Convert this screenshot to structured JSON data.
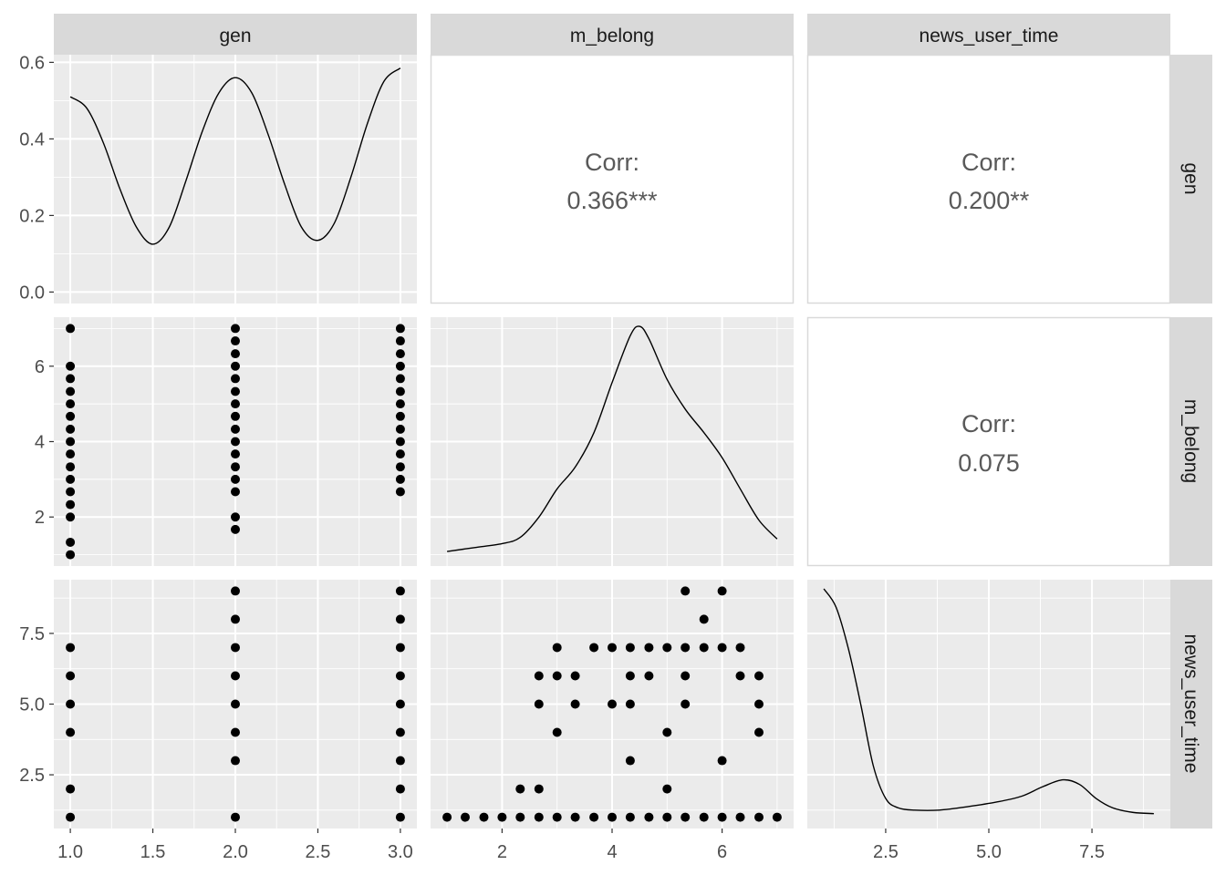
{
  "chart_data": {
    "type": "scatter",
    "subtype": "pairs-plot-matrix",
    "variables": [
      "gen",
      "m_belong",
      "news_user_time"
    ],
    "strip_labels": {
      "columns": [
        "gen",
        "m_belong",
        "news_user_time"
      ],
      "rows": [
        "gen",
        "m_belong",
        "news_user_time"
      ]
    },
    "colors": {
      "panel_bg": "#ebebeb",
      "grid": "#ffffff",
      "strip_bg": "#d9d9d9",
      "point": "#000000",
      "line": "#000000",
      "corr_text": "#595959",
      "tick_text": "#4d4d4d"
    },
    "axes": {
      "gen": {
        "range": [
          0.9,
          3.1
        ],
        "ticks": [
          1.0,
          1.5,
          2.0,
          2.5,
          3.0
        ],
        "tick_labels": [
          "1.0",
          "1.5",
          "2.0",
          "2.5",
          "3.0"
        ]
      },
      "m_belong": {
        "range": [
          0.7,
          7.3
        ],
        "ticks": [
          2,
          4,
          6
        ],
        "tick_labels": [
          "2",
          "4",
          "6"
        ]
      },
      "news_user_time": {
        "range": [
          0.6,
          9.4
        ],
        "ticks": [
          2.5,
          5.0,
          7.5
        ],
        "tick_labels": [
          "2.5",
          "5.0",
          "7.5"
        ]
      },
      "density_y": {
        "range": [
          -0.03,
          0.62
        ],
        "ticks": [
          0.0,
          0.2,
          0.4,
          0.6
        ],
        "tick_labels": [
          "0.0",
          "0.2",
          "0.4",
          "0.6"
        ]
      }
    },
    "correlations": [
      {
        "row": "gen",
        "col": "m_belong",
        "label": "Corr:",
        "value": "0.366***"
      },
      {
        "row": "gen",
        "col": "news_user_time",
        "label": "Corr:",
        "value": "0.200**"
      },
      {
        "row": "m_belong",
        "col": "news_user_time",
        "label": "Corr:",
        "value": "0.075"
      }
    ],
    "densities": {
      "gen": {
        "x": [
          1.0,
          1.1,
          1.2,
          1.3,
          1.4,
          1.5,
          1.6,
          1.7,
          1.8,
          1.9,
          2.0,
          2.1,
          2.2,
          2.3,
          2.4,
          2.5,
          2.6,
          2.7,
          2.8,
          2.9,
          3.0
        ],
        "y": [
          0.51,
          0.48,
          0.39,
          0.27,
          0.17,
          0.125,
          0.17,
          0.29,
          0.42,
          0.52,
          0.56,
          0.52,
          0.41,
          0.28,
          0.17,
          0.135,
          0.18,
          0.3,
          0.44,
          0.55,
          0.585
        ]
      },
      "m_belong": {
        "x": [
          1.0,
          1.5,
          2.0,
          2.33,
          2.67,
          3.0,
          3.33,
          3.67,
          4.0,
          4.33,
          4.5,
          4.67,
          5.0,
          5.33,
          5.67,
          6.0,
          6.33,
          6.67,
          7.0
        ],
        "y": [
          0.02,
          0.045,
          0.07,
          0.11,
          0.24,
          0.42,
          0.56,
          0.78,
          1.1,
          1.4,
          1.46,
          1.38,
          1.12,
          0.93,
          0.78,
          0.62,
          0.42,
          0.22,
          0.1
        ]
      },
      "news_user_time": {
        "x": [
          1.0,
          1.3,
          1.6,
          1.9,
          2.2,
          2.5,
          2.8,
          3.2,
          3.8,
          4.5,
          5.2,
          5.8,
          6.3,
          6.8,
          7.2,
          7.6,
          8.0,
          8.5,
          9.0
        ],
        "y": [
          0.98,
          0.9,
          0.72,
          0.48,
          0.22,
          0.08,
          0.04,
          0.03,
          0.03,
          0.045,
          0.065,
          0.09,
          0.13,
          0.16,
          0.14,
          0.08,
          0.04,
          0.02,
          0.015
        ]
      }
    },
    "scatter": {
      "gen_vs_m_belong": [
        [
          1,
          7
        ],
        [
          1,
          6
        ],
        [
          1,
          5.67
        ],
        [
          1,
          5.33
        ],
        [
          1,
          5
        ],
        [
          1,
          4.67
        ],
        [
          1,
          4.33
        ],
        [
          1,
          4
        ],
        [
          1,
          3.67
        ],
        [
          1,
          3.33
        ],
        [
          1,
          3
        ],
        [
          1,
          2.67
        ],
        [
          1,
          2.33
        ],
        [
          1,
          2
        ],
        [
          1,
          1.33
        ],
        [
          1,
          1
        ],
        [
          2,
          7
        ],
        [
          2,
          6.67
        ],
        [
          2,
          6.33
        ],
        [
          2,
          6
        ],
        [
          2,
          5.67
        ],
        [
          2,
          5.33
        ],
        [
          2,
          5
        ],
        [
          2,
          4.67
        ],
        [
          2,
          4.33
        ],
        [
          2,
          4
        ],
        [
          2,
          3.67
        ],
        [
          2,
          3.33
        ],
        [
          2,
          3
        ],
        [
          2,
          2.67
        ],
        [
          2,
          2
        ],
        [
          2,
          1.67
        ],
        [
          3,
          7
        ],
        [
          3,
          6.67
        ],
        [
          3,
          6.33
        ],
        [
          3,
          6
        ],
        [
          3,
          5.67
        ],
        [
          3,
          5.33
        ],
        [
          3,
          5
        ],
        [
          3,
          4.67
        ],
        [
          3,
          4.33
        ],
        [
          3,
          4
        ],
        [
          3,
          3.67
        ],
        [
          3,
          3.33
        ],
        [
          3,
          3
        ],
        [
          3,
          2.67
        ]
      ],
      "gen_vs_news_user_time": [
        [
          1,
          7
        ],
        [
          1,
          6
        ],
        [
          1,
          5
        ],
        [
          1,
          4
        ],
        [
          1,
          2
        ],
        [
          1,
          1
        ],
        [
          2,
          9
        ],
        [
          2,
          8
        ],
        [
          2,
          7
        ],
        [
          2,
          6
        ],
        [
          2,
          5
        ],
        [
          2,
          4
        ],
        [
          2,
          3
        ],
        [
          2,
          1
        ],
        [
          3,
          9
        ],
        [
          3,
          8
        ],
        [
          3,
          7
        ],
        [
          3,
          6
        ],
        [
          3,
          5
        ],
        [
          3,
          4
        ],
        [
          3,
          3
        ],
        [
          3,
          2
        ],
        [
          3,
          1
        ]
      ],
      "m_belong_vs_news_user_time": [
        [
          1,
          1
        ],
        [
          1.33,
          1
        ],
        [
          1.67,
          1
        ],
        [
          2,
          1
        ],
        [
          2.33,
          1
        ],
        [
          2.67,
          1
        ],
        [
          3,
          1
        ],
        [
          3.33,
          1
        ],
        [
          3.67,
          1
        ],
        [
          4,
          1
        ],
        [
          4.33,
          1
        ],
        [
          4.67,
          1
        ],
        [
          5,
          1
        ],
        [
          5.33,
          1
        ],
        [
          5.67,
          1
        ],
        [
          6,
          1
        ],
        [
          6.33,
          1
        ],
        [
          6.67,
          1
        ],
        [
          7,
          1
        ],
        [
          2.33,
          2
        ],
        [
          2.67,
          2
        ],
        [
          5,
          2
        ],
        [
          4.33,
          3
        ],
        [
          6,
          3
        ],
        [
          3,
          4
        ],
        [
          5,
          4
        ],
        [
          6.67,
          4
        ],
        [
          2.67,
          5
        ],
        [
          3.33,
          5
        ],
        [
          4,
          5
        ],
        [
          4.33,
          5
        ],
        [
          5.33,
          5
        ],
        [
          6.67,
          5
        ],
        [
          2.67,
          6
        ],
        [
          3,
          6
        ],
        [
          3.33,
          6
        ],
        [
          4.33,
          6
        ],
        [
          4.67,
          6
        ],
        [
          5.33,
          6
        ],
        [
          6.33,
          6
        ],
        [
          6.67,
          6
        ],
        [
          3,
          7
        ],
        [
          3.67,
          7
        ],
        [
          4,
          7
        ],
        [
          4.33,
          7
        ],
        [
          4.67,
          7
        ],
        [
          5,
          7
        ],
        [
          5.33,
          7
        ],
        [
          5.67,
          7
        ],
        [
          6,
          7
        ],
        [
          6.33,
          7
        ],
        [
          5.67,
          8
        ],
        [
          5.33,
          9
        ],
        [
          6,
          9
        ]
      ]
    }
  }
}
